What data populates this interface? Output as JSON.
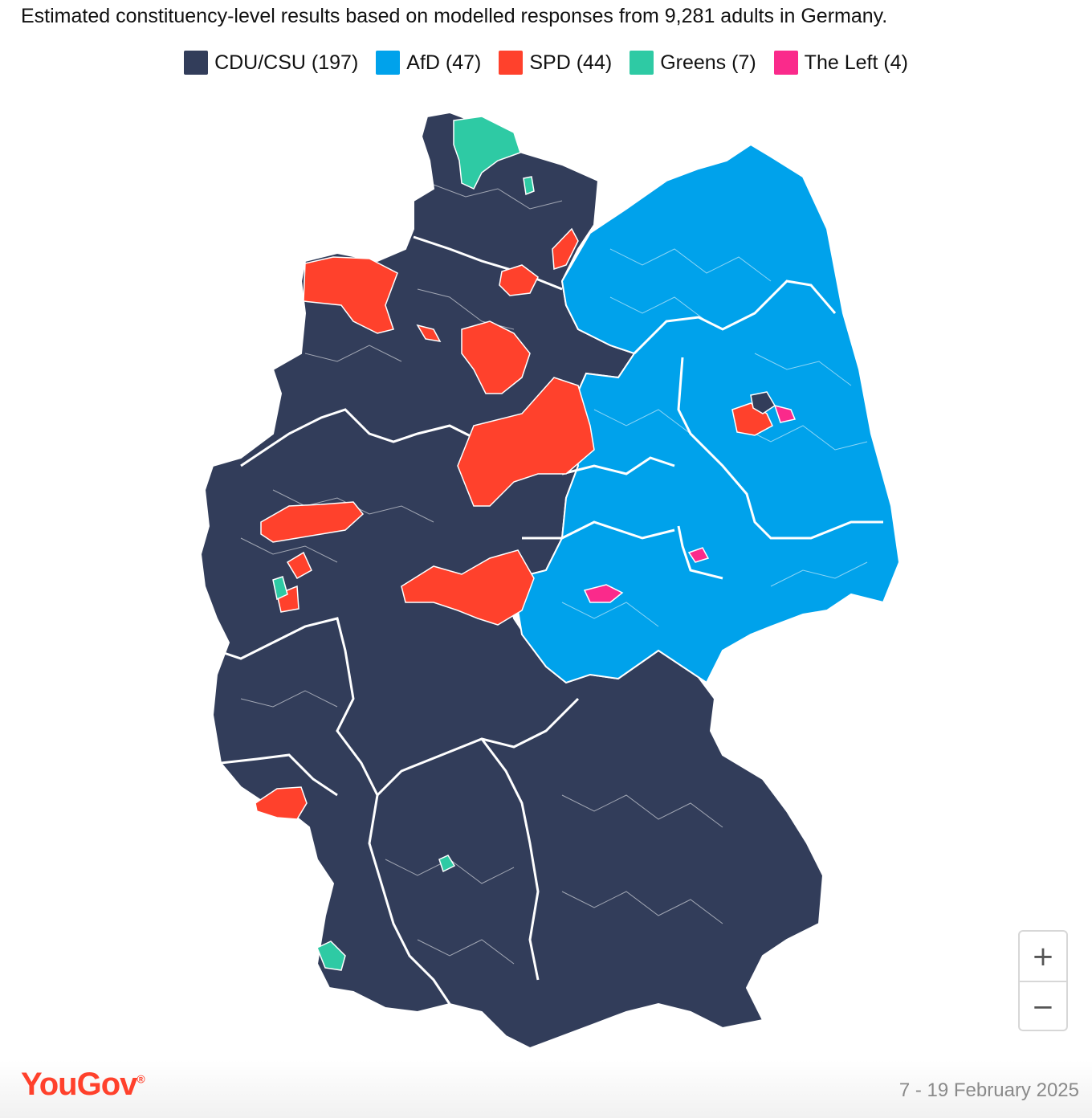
{
  "subtitle": "Estimated constituency-level results based on modelled responses from 9,281 adults in Germany.",
  "legend": [
    {
      "label": "CDU/CSU (197)",
      "color": "#323d5a"
    },
    {
      "label": "AfD (47)",
      "color": "#00a2eb"
    },
    {
      "label": "SPD (44)",
      "color": "#ff412c"
    },
    {
      "label": "Greens (7)",
      "color": "#2ecaa4"
    },
    {
      "label": "The Left (4)",
      "color": "#fa2a8b"
    }
  ],
  "map": {
    "country": "Germany",
    "border_color": "#ffffff",
    "party_colors": {
      "cdu_csu": "#323d5a",
      "afd": "#00a2eb",
      "spd": "#ff412c",
      "greens": "#2ecaa4",
      "left": "#fa2a8b"
    }
  },
  "zoom": {
    "in_label": "+",
    "out_label": "−"
  },
  "footer": {
    "brand": "YouGov",
    "brand_mark": "®",
    "date": "7 - 19 February 2025"
  }
}
